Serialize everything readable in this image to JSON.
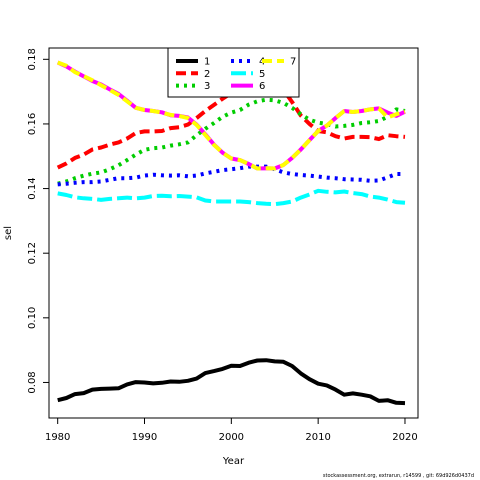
{
  "footer": "stockassessment.org, extrarun, r14599 , git: 69d926d0437d",
  "chart_data": {
    "type": "line",
    "xlabel": "Year",
    "ylabel": "sel",
    "xlim": [
      1979,
      2021.5
    ],
    "ylim": [
      0.069,
      0.1835
    ],
    "xticks": [
      1980,
      1990,
      2000,
      2010,
      2020
    ],
    "yticks": [
      0.08,
      0.1,
      0.12,
      0.14,
      0.16,
      0.18
    ],
    "yticklabels": [
      "0.08",
      "0.10",
      "0.12",
      "0.14",
      "0.16",
      "0.18"
    ],
    "legend_position": "top-center",
    "x": [
      1980,
      1981,
      1982,
      1983,
      1984,
      1985,
      1986,
      1987,
      1988,
      1989,
      1990,
      1991,
      1992,
      1993,
      1994,
      1995,
      1996,
      1997,
      1998,
      1999,
      2000,
      2001,
      2002,
      2003,
      2004,
      2005,
      2006,
      2007,
      2008,
      2009,
      2010,
      2011,
      2012,
      2013,
      2014,
      2015,
      2016,
      2017,
      2018,
      2019,
      2020
    ],
    "series": [
      {
        "name": "1",
        "color": "#000000",
        "dash": "solid",
        "values": [
          0.0745,
          0.0752,
          0.0764,
          0.0767,
          0.0778,
          0.078,
          0.0781,
          0.0782,
          0.0794,
          0.0801,
          0.08,
          0.0797,
          0.0799,
          0.0803,
          0.0802,
          0.0805,
          0.0812,
          0.0829,
          0.0835,
          0.0842,
          0.0852,
          0.0851,
          0.0861,
          0.0868,
          0.0869,
          0.0865,
          0.0864,
          0.0851,
          0.0828,
          0.081,
          0.0796,
          0.0791,
          0.0778,
          0.0762,
          0.0766,
          0.0762,
          0.0757,
          0.0743,
          0.0745,
          0.0737,
          0.0736
        ]
      },
      {
        "name": "2",
        "color": "#ff0000",
        "dash": "dash",
        "values": [
          0.1465,
          0.1478,
          0.1495,
          0.1505,
          0.1521,
          0.1527,
          0.1536,
          0.1543,
          0.1555,
          0.1572,
          0.1577,
          0.1577,
          0.1578,
          0.1587,
          0.159,
          0.1598,
          0.1618,
          0.164,
          0.1659,
          0.1678,
          0.1695,
          0.171,
          0.1722,
          0.1722,
          0.1724,
          0.1716,
          0.1705,
          0.1668,
          0.1626,
          0.16,
          0.1578,
          0.1574,
          0.1562,
          0.1555,
          0.156,
          0.156,
          0.1559,
          0.1553,
          0.1565,
          0.1562,
          0.156
        ]
      },
      {
        "name": "3",
        "color": "#00cd00",
        "dash": "dot",
        "values": [
          0.1415,
          0.1422,
          0.1432,
          0.144,
          0.1446,
          0.145,
          0.146,
          0.1472,
          0.1488,
          0.1505,
          0.152,
          0.1525,
          0.1527,
          0.1533,
          0.1537,
          0.1543,
          0.1565,
          0.1585,
          0.1603,
          0.1622,
          0.1635,
          0.1643,
          0.166,
          0.167,
          0.1675,
          0.1673,
          0.1665,
          0.165,
          0.163,
          0.1613,
          0.1604,
          0.16,
          0.1592,
          0.1594,
          0.1597,
          0.1603,
          0.1605,
          0.1609,
          0.1622,
          0.1645,
          0.164
        ]
      },
      {
        "name": "4",
        "color": "#0000ff",
        "dash": "dot",
        "values": [
          0.1413,
          0.1415,
          0.1418,
          0.142,
          0.142,
          0.1422,
          0.1427,
          0.1432,
          0.1432,
          0.1434,
          0.144,
          0.1443,
          0.1441,
          0.144,
          0.1441,
          0.1438,
          0.144,
          0.1447,
          0.1452,
          0.1457,
          0.146,
          0.1463,
          0.1468,
          0.1468,
          0.1468,
          0.146,
          0.145,
          0.1445,
          0.1442,
          0.144,
          0.1437,
          0.1434,
          0.1432,
          0.1429,
          0.1428,
          0.1427,
          0.1424,
          0.1425,
          0.1435,
          0.1445,
          0.1445
        ]
      },
      {
        "name": "5",
        "color": "#00ffff",
        "dash": "longdash",
        "values": [
          0.1385,
          0.138,
          0.1373,
          0.137,
          0.1368,
          0.1365,
          0.1368,
          0.137,
          0.1372,
          0.137,
          0.1372,
          0.1377,
          0.1378,
          0.1376,
          0.1377,
          0.1375,
          0.1373,
          0.1363,
          0.136,
          0.136,
          0.136,
          0.136,
          0.1358,
          0.1355,
          0.1353,
          0.1352,
          0.1355,
          0.136,
          0.1372,
          0.1382,
          0.1393,
          0.139,
          0.1388,
          0.1391,
          0.1386,
          0.1383,
          0.1375,
          0.1372,
          0.1366,
          0.1358,
          0.1356
        ]
      },
      {
        "name": "6",
        "color": "#ff00ff",
        "dash": "solid",
        "values": [
          0.179,
          0.1778,
          0.1762,
          0.1747,
          0.1733,
          0.1722,
          0.1707,
          0.1693,
          0.1672,
          0.165,
          0.1643,
          0.164,
          0.1636,
          0.1627,
          0.1625,
          0.162,
          0.1598,
          0.1568,
          0.1536,
          0.1511,
          0.1493,
          0.1488,
          0.1476,
          0.1462,
          0.1463,
          0.1462,
          0.1473,
          0.1495,
          0.1521,
          0.155,
          0.1578,
          0.1595,
          0.1618,
          0.164,
          0.1637,
          0.164,
          0.1645,
          0.1648,
          0.1635,
          0.1625,
          0.1638
        ]
      },
      {
        "name": "7",
        "color": "#ffff00",
        "dash": "dash",
        "values": [
          0.179,
          0.178,
          0.176,
          0.1748,
          0.1735,
          0.172,
          0.1705,
          0.169,
          0.167,
          0.165,
          0.1643,
          0.164,
          0.1635,
          0.1628,
          0.1625,
          0.1618,
          0.1597,
          0.1566,
          0.1535,
          0.1511,
          0.1493,
          0.1488,
          0.1476,
          0.1462,
          0.1463,
          0.1462,
          0.1473,
          0.1495,
          0.1521,
          0.155,
          0.1578,
          0.1595,
          0.1618,
          0.164,
          0.1637,
          0.164,
          0.1645,
          0.1648,
          0.162,
          0.163,
          0.1638
        ]
      }
    ]
  }
}
